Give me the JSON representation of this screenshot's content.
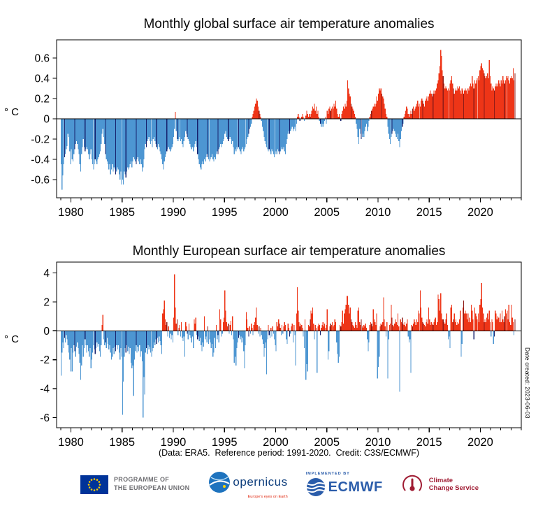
{
  "charts": {
    "caption": "(Data: ERA5.  Reference period: 1991-2020.  Credit: C3S/ECMWF)",
    "date_note": "Date created: 2023-06-03"
  },
  "chart_data": [
    {
      "type": "bar",
      "name": "global",
      "title": "Monthly global surface air temperature anomalies",
      "ylabel": "° C",
      "x_start_year": 1979,
      "x_end": "2023-05",
      "bar_interval": "monthly",
      "highlight_month": "May",
      "highlight_month_index": 4,
      "xlim": [
        1978.6,
        2024.0
      ],
      "ylim": [
        -0.78,
        0.78
      ],
      "xticks": [
        1980,
        1985,
        1990,
        1995,
        2000,
        2005,
        2010,
        2015,
        2020
      ],
      "xtick_labels": [
        "1980",
        "1985",
        "1990",
        "1995",
        "2000",
        "2005",
        "2010",
        "2015",
        "2020"
      ],
      "minor_xtick_every_years": 1,
      "yticks": [
        -0.6,
        -0.4,
        -0.2,
        0,
        0.2,
        0.4,
        0.6
      ],
      "ytick_labels": [
        "-0.6",
        "-0.4",
        "-0.2",
        "0",
        "0.2",
        "0.4",
        "0.6"
      ],
      "grid": false,
      "colors": {
        "positive": "#ee3517",
        "positive_highlight": "#8e1c18",
        "negative": "#4d96d2",
        "negative_highlight": "#16216e"
      },
      "values": [
        -0.45,
        -0.7,
        -0.56,
        -0.45,
        -0.38,
        -0.35,
        -0.3,
        -0.27,
        -0.15,
        -0.18,
        -0.32,
        -0.45,
        -0.3,
        -0.4,
        -0.42,
        -0.35,
        -0.3,
        -0.25,
        -0.22,
        -0.25,
        -0.3,
        -0.35,
        -0.45,
        -0.52,
        -0.35,
        -0.28,
        -0.2,
        -0.28,
        -0.32,
        -0.3,
        -0.28,
        -0.3,
        -0.35,
        -0.4,
        -0.35,
        -0.3,
        -0.4,
        -0.45,
        -0.5,
        -0.45,
        -0.4,
        -0.42,
        -0.45,
        -0.4,
        -0.38,
        -0.35,
        -0.32,
        -0.25,
        -0.15,
        -0.1,
        -0.18,
        -0.25,
        -0.35,
        -0.4,
        -0.42,
        -0.45,
        -0.5,
        -0.45,
        -0.55,
        -0.5,
        -0.45,
        -0.52,
        -0.48,
        -0.5,
        -0.55,
        -0.52,
        -0.48,
        -0.5,
        -0.55,
        -0.6,
        -0.52,
        -0.65,
        -0.6,
        -0.65,
        -0.52,
        -0.55,
        -0.58,
        -0.52,
        -0.48,
        -0.5,
        -0.48,
        -0.45,
        -0.42,
        -0.48,
        -0.42,
        -0.38,
        -0.4,
        -0.42,
        -0.45,
        -0.4,
        -0.38,
        -0.42,
        -0.45,
        -0.4,
        -0.45,
        -0.52,
        -0.48,
        -0.4,
        -0.3,
        -0.25,
        -0.28,
        -0.22,
        -0.2,
        -0.18,
        -0.22,
        -0.25,
        -0.22,
        -0.28,
        -0.2,
        -0.18,
        -0.22,
        -0.25,
        -0.28,
        -0.3,
        -0.25,
        -0.28,
        -0.32,
        -0.35,
        -0.4,
        -0.45,
        -0.5,
        -0.42,
        -0.38,
        -0.35,
        -0.32,
        -0.3,
        -0.28,
        -0.3,
        -0.32,
        -0.3,
        -0.28,
        -0.25,
        -0.18,
        -0.1,
        0.07,
        -0.12,
        -0.2,
        -0.22,
        -0.2,
        -0.18,
        -0.22,
        -0.2,
        -0.25,
        -0.28,
        -0.22,
        -0.18,
        -0.12,
        -0.15,
        -0.18,
        -0.2,
        -0.22,
        -0.25,
        -0.28,
        -0.3,
        -0.28,
        -0.32,
        -0.28,
        -0.25,
        -0.22,
        -0.28,
        -0.35,
        -0.4,
        -0.45,
        -0.48,
        -0.5,
        -0.45,
        -0.42,
        -0.45,
        -0.4,
        -0.42,
        -0.38,
        -0.35,
        -0.38,
        -0.4,
        -0.42,
        -0.4,
        -0.38,
        -0.35,
        -0.4,
        -0.42,
        -0.38,
        -0.4,
        -0.35,
        -0.32,
        -0.35,
        -0.3,
        -0.28,
        -0.25,
        -0.28,
        -0.25,
        -0.22,
        -0.2,
        -0.15,
        -0.12,
        -0.18,
        -0.2,
        -0.22,
        -0.2,
        -0.18,
        -0.2,
        -0.25,
        -0.22,
        -0.28,
        -0.35,
        -0.3,
        -0.32,
        -0.28,
        -0.3,
        -0.28,
        -0.3,
        -0.32,
        -0.35,
        -0.3,
        -0.28,
        -0.32,
        -0.3,
        -0.28,
        -0.25,
        -0.2,
        -0.18,
        -0.15,
        -0.1,
        -0.08,
        -0.05,
        0.02,
        0.05,
        0.08,
        0.12,
        0.15,
        0.2,
        0.18,
        0.12,
        0.08,
        0.05,
        0.02,
        -0.02,
        -0.08,
        -0.12,
        -0.18,
        -0.22,
        -0.25,
        -0.28,
        -0.3,
        -0.32,
        -0.3,
        -0.32,
        -0.35,
        -0.3,
        -0.32,
        -0.35,
        -0.38,
        -0.35,
        -0.32,
        -0.35,
        -0.3,
        -0.32,
        -0.35,
        -0.32,
        -0.3,
        -0.28,
        -0.3,
        -0.28,
        -0.32,
        -0.35,
        -0.25,
        -0.2,
        -0.15,
        -0.12,
        -0.15,
        -0.12,
        -0.1,
        -0.08,
        -0.12,
        -0.1,
        -0.08,
        -0.12,
        -0.05,
        0.02,
        0.05,
        0.02,
        -0.02,
        0.0,
        0.02,
        0.05,
        0.02,
        -0.02,
        0.0,
        0.03,
        0.08,
        0.05,
        0.02,
        0.05,
        0.02,
        0.05,
        0.08,
        0.12,
        0.1,
        0.15,
        0.08,
        0.12,
        0.05,
        0.08,
        0.02,
        -0.02,
        -0.05,
        -0.08,
        -0.05,
        -0.08,
        -0.05,
        -0.02,
        0.02,
        -0.05,
        0.08,
        0.05,
        0.1,
        0.12,
        0.08,
        0.1,
        0.12,
        0.1,
        0.15,
        0.12,
        0.18,
        0.1,
        0.05,
        0.02,
        0.05,
        0.02,
        -0.02,
        0.05,
        0.08,
        0.12,
        0.1,
        0.15,
        0.12,
        0.18,
        0.38,
        0.3,
        0.25,
        0.22,
        0.15,
        0.12,
        0.1,
        0.08,
        0.05,
        0.02,
        -0.05,
        -0.1,
        -0.18,
        -0.25,
        -0.1,
        -0.15,
        -0.2,
        -0.18,
        -0.15,
        -0.18,
        -0.12,
        -0.08,
        -0.05,
        -0.12,
        -0.08,
        -0.02,
        0.02,
        0.05,
        0.08,
        0.1,
        0.12,
        0.15,
        0.12,
        0.15,
        0.22,
        0.18,
        0.25,
        0.3,
        0.28,
        0.3,
        0.25,
        0.22,
        0.2,
        0.15,
        0.1,
        0.05,
        0.02,
        -0.08,
        -0.15,
        -0.2,
        -0.25,
        -0.18,
        -0.15,
        -0.12,
        -0.1,
        -0.12,
        -0.15,
        -0.18,
        -0.2,
        -0.15,
        -0.22,
        -0.28,
        -0.2,
        -0.12,
        -0.08,
        -0.05,
        0.02,
        0.05,
        0.08,
        0.12,
        0.1,
        0.05,
        0.02,
        0.05,
        0.08,
        0.05,
        0.1,
        0.12,
        0.08,
        0.1,
        0.12,
        0.15,
        0.18,
        0.12,
        0.15,
        0.12,
        0.18,
        0.2,
        0.18,
        0.15,
        0.12,
        0.18,
        0.2,
        0.22,
        0.18,
        0.22,
        0.25,
        0.28,
        0.25,
        0.22,
        0.25,
        0.28,
        0.25,
        0.28,
        0.3,
        0.35,
        0.38,
        0.45,
        0.52,
        0.68,
        0.62,
        0.48,
        0.42,
        0.35,
        0.3,
        0.32,
        0.3,
        0.28,
        0.3,
        0.28,
        0.35,
        0.38,
        0.42,
        0.35,
        0.3,
        0.25,
        0.28,
        0.3,
        0.28,
        0.32,
        0.3,
        0.32,
        0.28,
        0.25,
        0.3,
        0.28,
        0.25,
        0.28,
        0.3,
        0.28,
        0.25,
        0.3,
        0.28,
        0.32,
        0.35,
        0.32,
        0.42,
        0.35,
        0.3,
        0.38,
        0.35,
        0.38,
        0.4,
        0.42,
        0.38,
        0.48,
        0.52,
        0.55,
        0.5,
        0.48,
        0.45,
        0.42,
        0.4,
        0.42,
        0.45,
        0.4,
        0.58,
        0.42,
        0.35,
        0.28,
        0.32,
        0.3,
        0.28,
        0.32,
        0.35,
        0.32,
        0.35,
        0.38,
        0.35,
        0.32,
        0.38,
        0.35,
        0.42,
        0.38,
        0.35,
        0.38,
        0.42,
        0.4,
        0.42,
        0.38,
        0.35,
        0.4,
        0.42,
        0.4,
        0.5,
        0.38,
        0.45
      ]
    },
    {
      "type": "bar",
      "name": "european",
      "title": "Monthly European surface air temperature anomalies",
      "ylabel": "° C",
      "x_start_year": 1979,
      "x_end": "2023-05",
      "bar_interval": "monthly",
      "highlight_month": "May",
      "highlight_month_index": 4,
      "xlim": [
        1978.6,
        2024.0
      ],
      "ylim": [
        -6.7,
        4.75
      ],
      "xticks": [
        1980,
        1985,
        1990,
        1995,
        2000,
        2005,
        2010,
        2015,
        2020
      ],
      "xtick_labels": [
        "1980",
        "1985",
        "1990",
        "1995",
        "2000",
        "2005",
        "2010",
        "2015",
        "2020"
      ],
      "minor_xtick_every_years": 1,
      "yticks": [
        -6,
        -4,
        -2,
        0,
        2,
        4
      ],
      "ytick_labels": [
        "-6",
        "-4",
        "-2",
        "0",
        "2",
        "4"
      ],
      "grid": false,
      "colors": {
        "positive": "#ee3517",
        "positive_highlight": "#8e1c18",
        "negative": "#4d96d2",
        "negative_highlight": "#16216e"
      },
      "values": [
        -3.1,
        -1.5,
        -0.8,
        -1.2,
        -0.5,
        -0.8,
        -0.3,
        -0.6,
        -1.0,
        -1.5,
        -2.0,
        -2.8,
        -1.2,
        -2.8,
        -1.5,
        -1.0,
        -1.4,
        -1.8,
        -1.1,
        -0.8,
        -1.2,
        -1.6,
        -2.2,
        -3.4,
        -2.4,
        -1.0,
        -1.8,
        -1.2,
        -0.6,
        -1.0,
        -1.5,
        -1.0,
        -1.4,
        -1.8,
        -1.2,
        -2.6,
        -2.0,
        -1.5,
        -1.0,
        -1.3,
        -1.6,
        -1.2,
        -0.8,
        -1.1,
        -0.9,
        -1.4,
        -1.8,
        -1.0,
        0.4,
        1.1,
        -0.6,
        -1.0,
        -0.8,
        -1.2,
        -0.5,
        -0.9,
        -1.3,
        -1.0,
        -1.5,
        -2.0,
        -1.8,
        -1.2,
        -1.6,
        -1.1,
        -1.4,
        -1.0,
        -1.3,
        -1.0,
        -1.5,
        -2.0,
        -1.2,
        -1.8,
        -5.8,
        -3.5,
        -1.8,
        -1.2,
        -1.5,
        -1.0,
        -1.4,
        -1.1,
        -1.6,
        -1.2,
        -2.2,
        -2.6,
        -2.4,
        -4.5,
        -2.0,
        -1.4,
        -1.0,
        -1.5,
        -1.1,
        -1.4,
        -1.0,
        -1.8,
        -1.4,
        -2.1,
        -6.0,
        -3.2,
        -4.4,
        -1.5,
        -1.2,
        -1.6,
        -1.0,
        -1.3,
        -1.1,
        -1.5,
        -1.8,
        -1.4,
        -1.2,
        -0.8,
        -1.0,
        -0.6,
        -0.9,
        -0.5,
        -0.8,
        -0.4,
        -0.7,
        -1.0,
        -1.6,
        1.2,
        1.5,
        2.1,
        0.8,
        0.4,
        0.6,
        -0.4,
        0.3,
        -0.5,
        -0.2,
        -0.6,
        -0.3,
        -0.8,
        0.9,
        3.9,
        1.6,
        0.5,
        0.8,
        -0.3,
        0.2,
        0.4,
        -0.4,
        0.6,
        -0.5,
        -0.7,
        -0.4,
        -1.8,
        0.6,
        0.3,
        -0.2,
        -0.6,
        0.5,
        -0.3,
        -0.5,
        -0.8,
        -0.4,
        -1.2,
        0.8,
        0.5,
        0.9,
        -0.3,
        -0.6,
        -0.4,
        -0.7,
        -0.5,
        -1.0,
        -1.4,
        -0.8,
        -1.1,
        1.0,
        -0.6,
        -0.4,
        -0.8,
        0.3,
        -0.9,
        -0.6,
        -0.8,
        -1.2,
        -0.9,
        -1.8,
        -1.5,
        -0.5,
        -1.2,
        0.4,
        -0.6,
        -0.3,
        -0.8,
        1.5,
        0.8,
        -0.4,
        -0.2,
        0.6,
        0.9,
        2.8,
        1.4,
        0.6,
        0.3,
        0.5,
        -0.2,
        0.4,
        0.7,
        -0.3,
        1.0,
        -0.6,
        -2.2,
        -1.8,
        -2.4,
        -1.2,
        -0.8,
        -0.5,
        -0.3,
        -0.6,
        -0.4,
        -0.8,
        -0.5,
        -1.4,
        -2.6,
        -1.0,
        1.3,
        0.8,
        0.2,
        -0.4,
        0.3,
        -0.2,
        0.5,
        0.2,
        -0.3,
        0.4,
        0.6,
        0.9,
        1.6,
        0.4,
        -0.2,
        0.3,
        -0.4,
        0.2,
        -0.3,
        -0.6,
        -0.9,
        -1.8,
        -1.2,
        -0.8,
        -3.0,
        -0.6,
        0.4,
        -0.3,
        -0.5,
        0.2,
        -0.4,
        0.3,
        -0.2,
        -0.6,
        -1.0,
        -1.4,
        0.6,
        0.3,
        0.8,
        0.5,
        0.2,
        -0.3,
        0.4,
        -0.2,
        0.3,
        0.6,
        0.4,
        -0.6,
        -0.9,
        0.5,
        0.2,
        -0.4,
        -0.2,
        0.3,
        0.5,
        -0.8,
        0.4,
        -0.3,
        -2.4,
        1.2,
        3.0,
        1.4,
        0.6,
        0.3,
        0.5,
        0.4,
        0.2,
        -0.4,
        -1.2,
        0.8,
        -3.4,
        -2.3,
        -2.8,
        0.4,
        0.3,
        0.8,
        1.4,
        1.2,
        1.6,
        0.5,
        -0.6,
        0.4,
        0.2,
        -2.9,
        0.3,
        0.5,
        0.4,
        -0.3,
        0.2,
        0.4,
        0.6,
        0.3,
        0.5,
        0.2,
        0.4,
        1.5,
        -2.0,
        -1.4,
        0.3,
        0.5,
        0.4,
        0.6,
        0.3,
        0.4,
        0.8,
        0.6,
        -0.8,
        -1.6,
        -2.2,
        -1.8,
        0.4,
        0.3,
        0.6,
        1.4,
        0.5,
        1.2,
        1.5,
        1.8,
        2.4,
        2.4,
        1.8,
        1.2,
        1.6,
        0.8,
        0.6,
        0.4,
        0.3,
        0.2,
        0.6,
        0.4,
        0.2,
        1.4,
        1.6,
        0.6,
        0.4,
        0.8,
        0.3,
        0.2,
        0.4,
        0.3,
        0.5,
        0.2,
        -0.6,
        -1.4,
        -0.8,
        0.4,
        0.6,
        0.5,
        0.3,
        1.5,
        0.8,
        0.6,
        0.4,
        1.2,
        -3.3,
        -2.5,
        -1.8,
        0.3,
        0.5,
        0.4,
        0.6,
        2.3,
        0.8,
        0.3,
        -0.4,
        0.6,
        -3.3,
        -0.6,
        0.4,
        0.5,
        1.8,
        0.9,
        0.4,
        0.3,
        0.5,
        0.8,
        0.6,
        0.4,
        1.2,
        0.3,
        -4.2,
        0.8,
        0.6,
        0.9,
        0.5,
        0.4,
        0.6,
        0.3,
        0.5,
        0.8,
        -0.4,
        -0.8,
        -0.6,
        -2.9,
        0.4,
        0.3,
        0.5,
        0.8,
        0.6,
        0.4,
        0.8,
        0.6,
        1.4,
        1.2,
        2.8,
        1.6,
        0.9,
        0.6,
        0.5,
        0.4,
        0.3,
        0.6,
        0.8,
        0.5,
        1.6,
        0.8,
        0.4,
        0.6,
        0.5,
        0.4,
        0.6,
        0.8,
        0.9,
        0.4,
        0.6,
        2.5,
        2.2,
        1.4,
        2.6,
        1.2,
        0.8,
        0.8,
        0.6,
        0.5,
        0.8,
        1.2,
        0.4,
        -0.6,
        -0.4,
        -1.2,
        1.6,
        1.8,
        0.6,
        0.8,
        1.2,
        0.6,
        0.8,
        0.4,
        0.6,
        0.5,
        0.8,
        1.4,
        -1.8,
        -0.9,
        1.6,
        2.1,
        1.2,
        1.4,
        1.2,
        0.8,
        1.2,
        0.6,
        0.9,
        0.6,
        1.8,
        1.4,
        0.8,
        -0.6,
        1.6,
        1.2,
        1.0,
        0.8,
        1.2,
        0.6,
        1.8,
        2.2,
        3.3,
        1.6,
        1.2,
        0.6,
        0.8,
        0.6,
        0.9,
        1.2,
        0.8,
        1.4,
        0.6,
        -0.4,
        0.8,
        0.6,
        -0.9,
        -0.4,
        1.4,
        1.2,
        0.8,
        1.0,
        0.9,
        0.6,
        1.2,
        0.6,
        1.4,
        0.8,
        0.6,
        1.0,
        1.5,
        1.2,
        1.4,
        0.8,
        1.8,
        0.6,
        0.4,
        1.8,
        0.9,
        0.6,
        -0.3,
        0.8
      ]
    }
  ],
  "footer": {
    "eu_programme": {
      "line1": "PROGRAMME OF",
      "line2": "THE EUROPEAN UNION"
    },
    "copernicus": {
      "wordmark": "opernicus",
      "tagline": "Europe's eyes on Earth"
    },
    "ecmwf": {
      "implemented_by": "IMPLEMENTED BY",
      "name": "ECMWF"
    },
    "c3s": {
      "line1": "Climate",
      "line2": "Change Service"
    }
  }
}
